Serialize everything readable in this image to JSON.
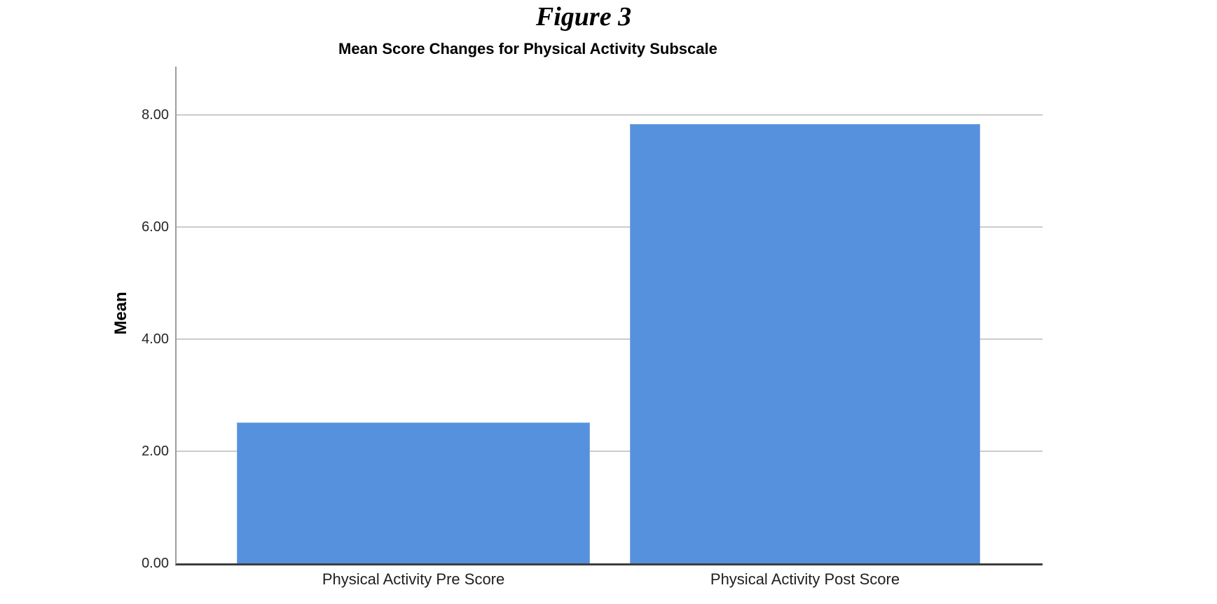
{
  "figure": {
    "title": "Figure 3"
  },
  "chart_data": {
    "type": "bar",
    "title": "Mean Score Changes for Physical Activity Subscale",
    "categories": [
      "Physical Activity Pre Score",
      "Physical Activity Post Score"
    ],
    "values": [
      2.51,
      7.83
    ],
    "xlabel": "",
    "ylabel": "Mean",
    "yticks": [
      "0.00",
      "2.00",
      "4.00",
      "6.00",
      "8.00"
    ],
    "ytick_values": [
      0,
      2,
      4,
      6,
      8
    ],
    "ylim": [
      0,
      8.86
    ],
    "axis_max": 8.86,
    "grid": "horizontal-only",
    "legend": "none",
    "bar_color": "#5591DC",
    "bar_border_color": "#7FA9E4",
    "gridline_color": "#CBCBCB",
    "axis_line_color": "#9D9D9D",
    "baseline_color": "#3D3D3D"
  }
}
